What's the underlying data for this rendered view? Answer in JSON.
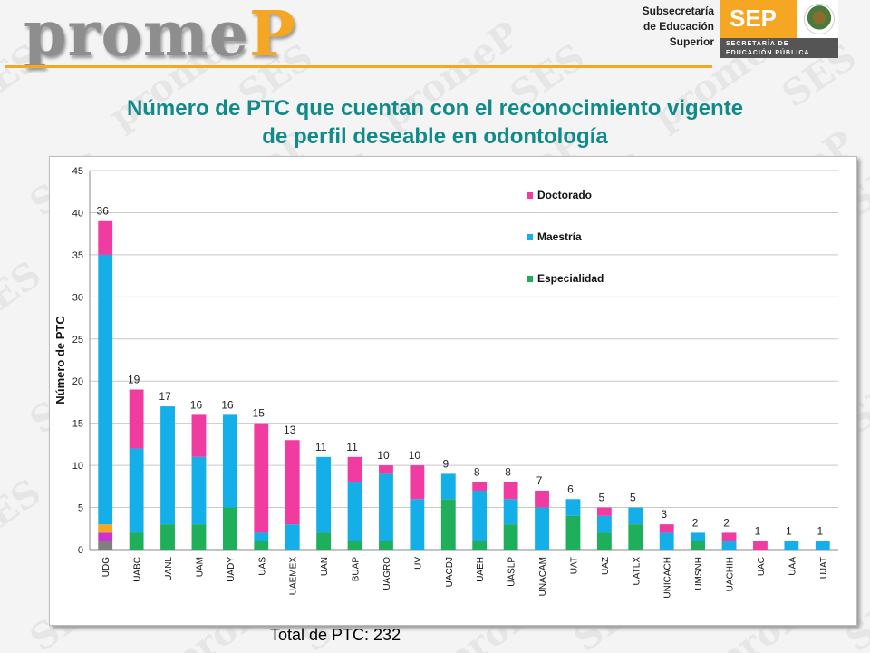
{
  "header": {
    "logo_part1": "prome",
    "logo_part2": "P",
    "subsecretaria": [
      "Subsecretaría",
      "de Educación",
      "Superior"
    ],
    "sep_word": "SEP",
    "sep_sub": [
      "SECRETARÍA DE",
      "EDUCACIÓN PÚBLICA"
    ]
  },
  "title_lines": [
    "Número de PTC que cuentan con el reconocimiento vigente",
    "de perfil deseable en odontología"
  ],
  "total_label": "Total de PTC: 232",
  "watermark_text": "promeP",
  "watermark_text2": "SES",
  "chart_data": {
    "type": "bar",
    "stacked": true,
    "ylabel": "Número de PTC",
    "ylim": [
      0,
      45
    ],
    "yticks": [
      0,
      5,
      10,
      15,
      20,
      25,
      30,
      35,
      40,
      45
    ],
    "grid": true,
    "legend_position": "top-right",
    "categories": [
      "UDG",
      "UABC",
      "UANL",
      "UAM",
      "UADY",
      "UAS",
      "UAEMEX",
      "UAN",
      "BUAP",
      "UAGRO",
      "UV",
      "UACDJ",
      "UAEH",
      "UASLP",
      "UNACAM",
      "UAT",
      "UAZ",
      "UATLX",
      "UNICACH",
      "UMSNH",
      "UACHIH",
      "UAC",
      "UAA",
      "UJAT"
    ],
    "totals": [
      36,
      19,
      17,
      16,
      16,
      15,
      13,
      11,
      11,
      10,
      10,
      9,
      8,
      8,
      7,
      6,
      5,
      5,
      3,
      2,
      2,
      1,
      1,
      1
    ],
    "extra_segments_udg": [
      {
        "color": "#7f7f7f",
        "value": 1
      },
      {
        "color": "#cc33cc",
        "value": 1
      },
      {
        "color": "#f5a623",
        "value": 1
      }
    ],
    "series": [
      {
        "name": "Especialidad",
        "color": "#1fae5a",
        "values": [
          0,
          2,
          3,
          3,
          5,
          1,
          0,
          2,
          1,
          1,
          0,
          6,
          1,
          3,
          0,
          4,
          2,
          3,
          0,
          1,
          0,
          0,
          0,
          0
        ]
      },
      {
        "name": "Maestría",
        "color": "#14aee8",
        "values": [
          32,
          10,
          14,
          8,
          11,
          1,
          3,
          9,
          7,
          8,
          6,
          3,
          6,
          3,
          5,
          2,
          2,
          2,
          2,
          1,
          1,
          0,
          1,
          1
        ]
      },
      {
        "name": "Doctorado",
        "color": "#f03ca0",
        "values": [
          4,
          7,
          0,
          5,
          0,
          13,
          10,
          0,
          3,
          1,
          4,
          0,
          1,
          2,
          2,
          0,
          1,
          0,
          1,
          0,
          1,
          1,
          0,
          0
        ]
      }
    ]
  }
}
